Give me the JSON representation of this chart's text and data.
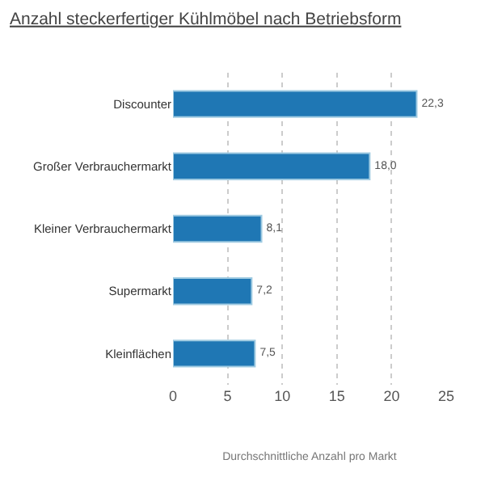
{
  "chart_data": {
    "type": "bar",
    "orientation": "horizontal",
    "title": "Anzahl steckerfertiger Kühlmöbel nach Betriebsform",
    "xlabel": "Durchschnittliche Anzahl pro Markt",
    "categories": [
      "Discounter",
      "Großer Verbrauchermarkt",
      "Kleiner Verbrauchermarkt",
      "Supermarkt",
      "Kleinflächen"
    ],
    "values": [
      22.3,
      18.0,
      8.1,
      7.2,
      7.5
    ],
    "value_labels": [
      "22,3",
      "18,0",
      "8,1",
      "7,2",
      "7,5"
    ],
    "color": "#1f77b4",
    "xlim": [
      0,
      25
    ],
    "xticks": [
      0,
      5,
      10,
      15,
      20,
      25
    ],
    "grid": "x"
  }
}
